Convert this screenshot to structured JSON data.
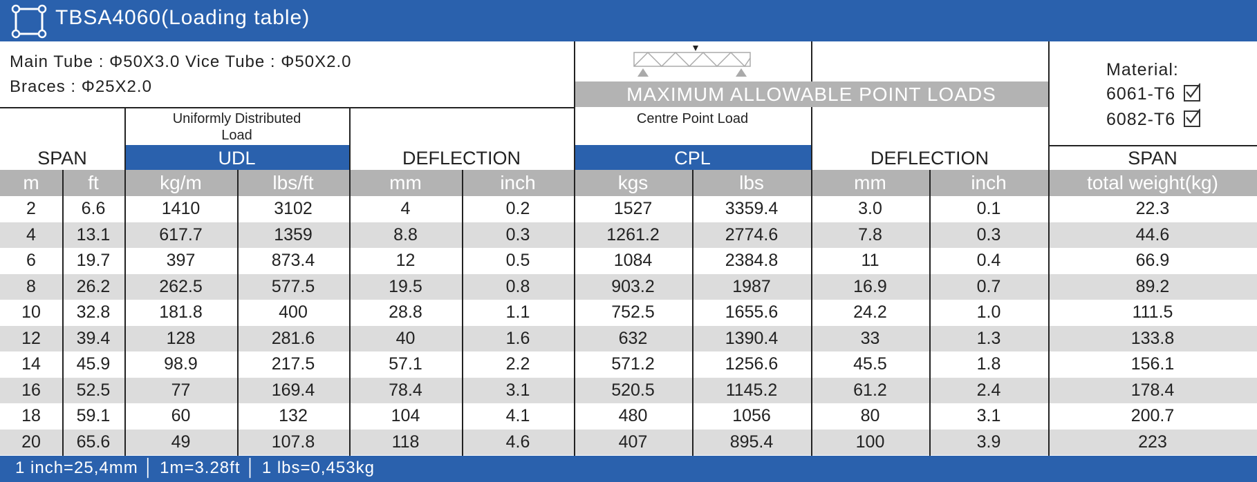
{
  "title": "TBSA4060(Loading table)",
  "icon": "truss-square-icon",
  "spec": {
    "line1": "Main Tube : Φ50X3.0   Vice Tube : Φ50X2.0",
    "line2": "Braces : Φ25X2.0"
  },
  "banner": "MAXIMUM ALLOWABLE POINT LOADS",
  "material": {
    "label": "Material:",
    "options": [
      "6061-T6",
      "6082-T6"
    ]
  },
  "headers": {
    "span": "SPAN",
    "udl_desc": "Uniformly Distributed Load",
    "udl": "UDL",
    "deflection": "DEFLECTION",
    "cpl_desc": "Centre Point Load",
    "cpl": "CPL",
    "span_right": "SPAN"
  },
  "units": [
    "m",
    "ft",
    "kg/m",
    "lbs/ft",
    "mm",
    "inch",
    "kgs",
    "lbs",
    "mm",
    "inch",
    "total weight(kg)"
  ],
  "rows": [
    [
      "2",
      "6.6",
      "1410",
      "3102",
      "4",
      "0.2",
      "1527",
      "3359.4",
      "3.0",
      "0.1",
      "22.3"
    ],
    [
      "4",
      "13.1",
      "617.7",
      "1359",
      "8.8",
      "0.3",
      "1261.2",
      "2774.6",
      "7.8",
      "0.3",
      "44.6"
    ],
    [
      "6",
      "19.7",
      "397",
      "873.4",
      "12",
      "0.5",
      "1084",
      "2384.8",
      "11",
      "0.4",
      "66.9"
    ],
    [
      "8",
      "26.2",
      "262.5",
      "577.5",
      "19.5",
      "0.8",
      "903.2",
      "1987",
      "16.9",
      "0.7",
      "89.2"
    ],
    [
      "10",
      "32.8",
      "181.8",
      "400",
      "28.8",
      "1.1",
      "752.5",
      "1655.6",
      "24.2",
      "1.0",
      "111.5"
    ],
    [
      "12",
      "39.4",
      "128",
      "281.6",
      "40",
      "1.6",
      "632",
      "1390.4",
      "33",
      "1.3",
      "133.8"
    ],
    [
      "14",
      "45.9",
      "98.9",
      "217.5",
      "57.1",
      "2.2",
      "571.2",
      "1256.6",
      "45.5",
      "1.8",
      "156.1"
    ],
    [
      "16",
      "52.5",
      "77",
      "169.4",
      "78.4",
      "3.1",
      "520.5",
      "1145.2",
      "61.2",
      "2.4",
      "178.4"
    ],
    [
      "18",
      "59.1",
      "60",
      "132",
      "104",
      "4.1",
      "480",
      "1056",
      "80",
      "3.1",
      "200.7"
    ],
    [
      "20",
      "65.6",
      "49",
      "107.8",
      "118",
      "4.6",
      "407",
      "895.4",
      "100",
      "3.9",
      "223"
    ]
  ],
  "footer": "1 inch=25,4mm │ 1m=3.28ft │ 1 lbs=0,453kg",
  "colors": {
    "header_blue": "#2a61ad",
    "unit_grey": "#b3b3b3",
    "row_shade": "#dcdcdc"
  }
}
